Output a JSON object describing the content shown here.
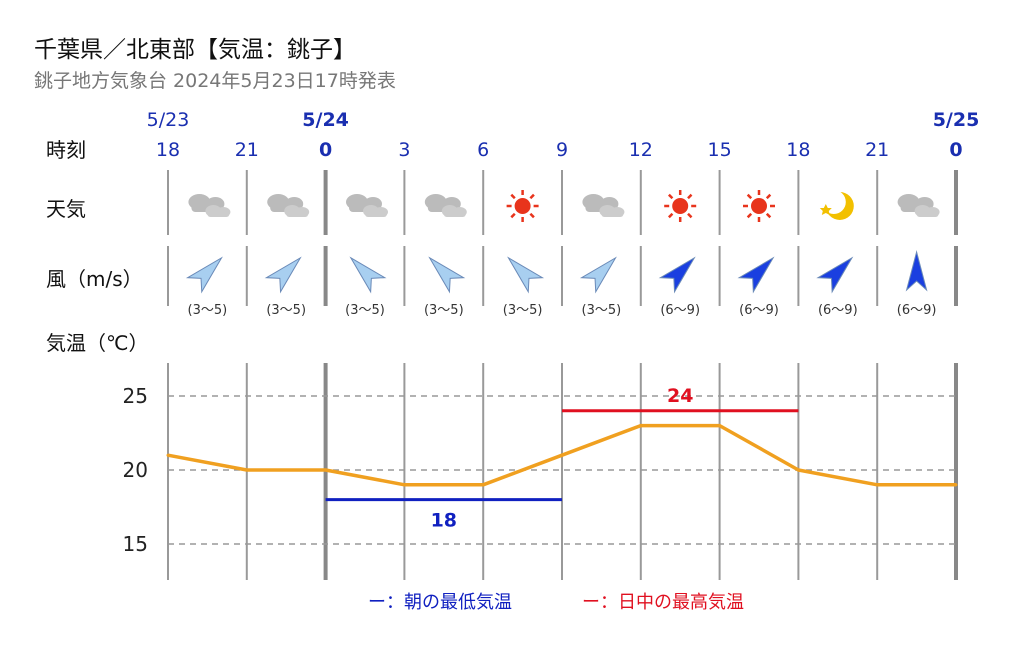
{
  "header": {
    "title": "千葉県／北東部【気温：銚子】",
    "subtitle": "銚子地方気象台 2024年5月23日17時発表"
  },
  "row_labels": {
    "time": "時刻",
    "weather": "天気",
    "wind": "風（m/s）",
    "temp": "気温（℃）"
  },
  "dates": [
    {
      "label": "5/23",
      "at": 0,
      "bold": false
    },
    {
      "label": "5/24",
      "at": 2,
      "bold": true
    },
    {
      "label": "5/25",
      "at": 10,
      "bold": true
    }
  ],
  "hours": [
    "18",
    "21",
    "0",
    "3",
    "6",
    "9",
    "12",
    "15",
    "18",
    "21",
    "0"
  ],
  "bold_hours": [
    2,
    10
  ],
  "weather": [
    "cloudy-icon",
    "cloudy-icon",
    "cloudy-icon",
    "cloudy-icon",
    "sunny-icon",
    "cloudy-icon",
    "sunny-icon",
    "sunny-icon",
    "moon-icon",
    "cloudy-icon"
  ],
  "wind": [
    {
      "range": "(3〜5)",
      "dir": "NE",
      "strength": "light"
    },
    {
      "range": "(3〜5)",
      "dir": "NE",
      "strength": "light"
    },
    {
      "range": "(3〜5)",
      "dir": "NW",
      "strength": "light"
    },
    {
      "range": "(3〜5)",
      "dir": "NW",
      "strength": "light"
    },
    {
      "range": "(3〜5)",
      "dir": "NW",
      "strength": "light"
    },
    {
      "range": "(3〜5)",
      "dir": "NE",
      "strength": "light"
    },
    {
      "range": "(6〜9)",
      "dir": "NE",
      "strength": "strong"
    },
    {
      "range": "(6〜9)",
      "dir": "NE",
      "strength": "strong"
    },
    {
      "range": "(6〜9)",
      "dir": "NE",
      "strength": "strong"
    },
    {
      "range": "(6〜9)",
      "dir": "N",
      "strength": "strong"
    }
  ],
  "colors": {
    "temp_line": "#f0a020",
    "min_temp": "#1020c0",
    "max_temp": "#e01020",
    "wind_light": "#a8cff0",
    "wind_strong": "#1a3fe0",
    "grid": "#999999"
  },
  "chart_data": {
    "type": "line",
    "x": [
      "18",
      "21",
      "0",
      "3",
      "6",
      "9",
      "12",
      "15",
      "18",
      "21",
      "0"
    ],
    "series": [
      {
        "values": [
          21,
          20,
          20,
          19,
          19,
          21,
          23,
          23,
          20,
          19,
          19
        ]
      }
    ],
    "yticks": [
      25,
      20,
      15
    ],
    "ylim": [
      12.5,
      27.5
    ],
    "grid": true,
    "min_temp": {
      "value": 18,
      "label": "18",
      "from": 2,
      "to": 5
    },
    "max_temp": {
      "value": 24,
      "label": "24",
      "from": 5,
      "to": 8
    },
    "legend": [
      {
        "label": "ー：朝の最低気温",
        "color": "#1020c0"
      },
      {
        "label": "ー：日中の最高気温",
        "color": "#e01020"
      }
    ]
  }
}
